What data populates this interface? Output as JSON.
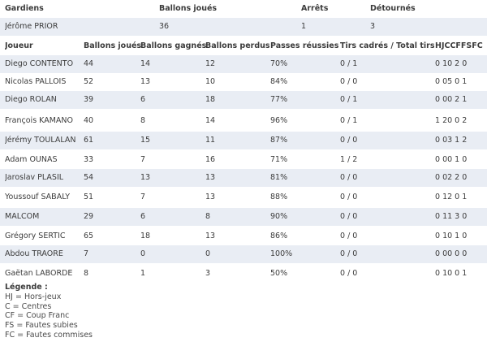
{
  "goalkeepers": {
    "header": {
      "name": "Gardiens",
      "balls_played": "Ballons joués",
      "saves": "Arrêts",
      "deflected": "Détournés"
    },
    "rows": [
      {
        "name": "Jérôme PRIOR",
        "balls_played": "36",
        "saves": "1",
        "deflected": "3"
      }
    ]
  },
  "players": {
    "header": {
      "name": "Joueur",
      "balls_played": "Ballons joués",
      "balls_won": "Ballons gagnés",
      "balls_lost": "Ballons perdus",
      "passes": "Passes réussies",
      "shots": "Tirs cadrés / Total tirs",
      "codes": "HJCCFFSFC"
    },
    "rows": [
      {
        "name": "Diego CONTENTO",
        "balls_played": "44",
        "balls_won": "14",
        "balls_lost": "12",
        "passes": "70%",
        "shots": "0 / 1",
        "codes": "0  10  2  0"
      },
      {
        "name": "Nicolas PALLOIS",
        "balls_played": "52",
        "balls_won": "13",
        "balls_lost": "10",
        "passes": "84%",
        "shots": "0 / 0",
        "codes": "0  05  0  1"
      },
      {
        "name": "Diego ROLAN",
        "balls_played": "39",
        "balls_won": "6",
        "balls_lost": "18",
        "passes": "77%",
        "shots": "0 / 1",
        "codes": "0  00  2  1"
      },
      {
        "name": "François KAMANO",
        "balls_played": "40",
        "balls_won": "8",
        "balls_lost": "14",
        "passes": "96%",
        "shots": "0 / 1",
        "codes": "1  20  0  2"
      },
      {
        "name": "Jérémy TOULALAN",
        "balls_played": "61",
        "balls_won": "15",
        "balls_lost": "11",
        "passes": "87%",
        "shots": "0 / 0",
        "codes": "0  03  1  2"
      },
      {
        "name": "Adam OUNAS",
        "balls_played": "33",
        "balls_won": "7",
        "balls_lost": "16",
        "passes": "71%",
        "shots": "1 / 2",
        "codes": "0  00  1  0"
      },
      {
        "name": "Jaroslav PLASIL",
        "balls_played": "54",
        "balls_won": "13",
        "balls_lost": "13",
        "passes": "81%",
        "shots": "0 / 0",
        "codes": "0  02  2  0"
      },
      {
        "name": "Youssouf SABALY",
        "balls_played": "51",
        "balls_won": "7",
        "balls_lost": "13",
        "passes": "88%",
        "shots": "0 / 0",
        "codes": "0  12  0  1"
      },
      {
        "name": "MALCOM",
        "balls_played": "29",
        "balls_won": "6",
        "balls_lost": "8",
        "passes": "90%",
        "shots": "0 / 0",
        "codes": "0  11  3  0"
      },
      {
        "name": "Grégory SERTIC",
        "balls_played": "65",
        "balls_won": "18",
        "balls_lost": "13",
        "passes": "86%",
        "shots": "0 / 0",
        "codes": "0  10  1  0"
      },
      {
        "name": "Abdou TRAORE",
        "balls_played": "7",
        "balls_won": "0",
        "balls_lost": "0",
        "passes": "100%",
        "shots": "0 / 0",
        "codes": "0  00  0  0"
      },
      {
        "name": "Gaëtan LABORDE",
        "balls_played": "8",
        "balls_won": "1",
        "balls_lost": "3",
        "passes": "50%",
        "shots": "0 / 0",
        "codes": "0  10  0  1"
      }
    ]
  },
  "legend": {
    "title": "Légende :",
    "items": [
      "HJ = Hors-jeux",
      "C = Centres",
      "CF = Coup Franc",
      "FS = Fautes subies",
      "FC = Fautes commises"
    ]
  }
}
